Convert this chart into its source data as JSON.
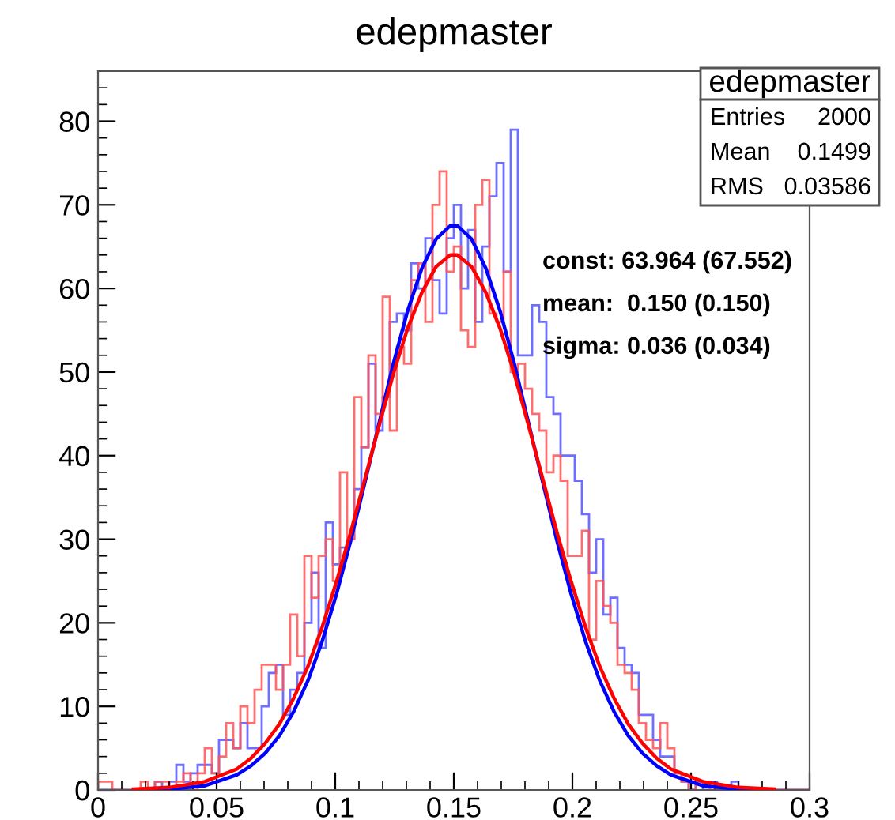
{
  "chart_data": {
    "type": "histogram",
    "title": "edepmaster",
    "bins": [
      0,
      0.003,
      0.006,
      0.009,
      0.012,
      0.015,
      0.018,
      0.021,
      0.024,
      0.027,
      0.03,
      0.033,
      0.036,
      0.039,
      0.042,
      0.045,
      0.048,
      0.051,
      0.054,
      0.057,
      0.06,
      0.063,
      0.066,
      0.069,
      0.072,
      0.075,
      0.078,
      0.081,
      0.084,
      0.087,
      0.09,
      0.093,
      0.096,
      0.099,
      0.102,
      0.105,
      0.108,
      0.111,
      0.114,
      0.117,
      0.12,
      0.123,
      0.126,
      0.129,
      0.132,
      0.135,
      0.138,
      0.141,
      0.144,
      0.147,
      0.15,
      0.153,
      0.156,
      0.159,
      0.162,
      0.165,
      0.168,
      0.171,
      0.174,
      0.177,
      0.18,
      0.183,
      0.186,
      0.189,
      0.192,
      0.195,
      0.198,
      0.201,
      0.204,
      0.207,
      0.21,
      0.213,
      0.216,
      0.219,
      0.222,
      0.225,
      0.228,
      0.231,
      0.234,
      0.237,
      0.24,
      0.243,
      0.246,
      0.249,
      0.252,
      0.255,
      0.258,
      0.261,
      0.264,
      0.267,
      0.27,
      0.273,
      0.276,
      0.279,
      0.282,
      0.285,
      0.288,
      0.291,
      0.294,
      0.297,
      0.3
    ],
    "series": [
      {
        "color": "#5555ff",
        "values": [
          0,
          0,
          0,
          0,
          0,
          0,
          0,
          0,
          1,
          0,
          1,
          3,
          1,
          2,
          3,
          3,
          2,
          6,
          6,
          5,
          8,
          5,
          5,
          10,
          14,
          15,
          9,
          12,
          14,
          20,
          26,
          17,
          32,
          27,
          29,
          30,
          36,
          41,
          51,
          43,
          47,
          56,
          57,
          55,
          63,
          60,
          66,
          61,
          57,
          66,
          70,
          60,
          67,
          56,
          65,
          71,
          75,
          62,
          79,
          52,
          52,
          58,
          56,
          47,
          45,
          40,
          40,
          37,
          33,
          26,
          30,
          21,
          23,
          17,
          15,
          14,
          9,
          9,
          6,
          4,
          4,
          2,
          1,
          0,
          1,
          0,
          1,
          0,
          0,
          1,
          0,
          0,
          0,
          0,
          0,
          0,
          0,
          0,
          0,
          0
        ]
      },
      {
        "color": "#ff5555",
        "values": [
          1,
          1,
          0,
          0,
          0,
          0,
          1,
          0,
          1,
          1,
          0,
          1,
          2,
          0,
          2,
          5,
          2,
          4,
          8,
          5,
          10,
          8,
          12,
          15,
          15,
          12,
          15,
          21,
          16,
          28,
          23,
          28,
          30,
          25,
          38,
          30,
          47,
          41,
          52,
          45,
          59,
          43,
          53,
          51,
          61,
          63,
          56,
          70,
          74,
          62,
          65,
          55,
          53,
          70,
          73,
          57,
          56,
          62,
          50,
          51,
          48,
          45,
          43,
          38,
          40,
          37,
          28,
          28,
          31,
          18,
          25,
          22,
          20,
          15,
          14,
          12,
          8,
          6,
          5,
          8,
          5,
          2,
          1,
          0,
          1,
          1,
          0,
          0,
          0,
          0,
          0,
          0,
          0,
          0,
          0,
          0,
          0,
          0,
          0,
          0
        ]
      },
      {
        "type": "line",
        "color": "#0000ff",
        "x": [
          0.015,
          0.03,
          0.045,
          0.0585,
          0.0645,
          0.0705,
          0.0765,
          0.0825,
          0.0885,
          0.0945,
          0.1005,
          0.1065,
          0.1125,
          0.1185,
          0.1245,
          0.1305,
          0.1365,
          0.1425,
          0.1485,
          0.1515,
          0.1575,
          0.1635,
          0.1695,
          0.1755,
          0.1815,
          0.1875,
          0.1935,
          0.1995,
          0.2055,
          0.2115,
          0.2175,
          0.2235,
          0.2295,
          0.2355,
          0.2415,
          0.255,
          0.27,
          0.285
        ],
        "values": [
          0,
          0.1,
          0.5,
          1.8,
          2.9,
          4.4,
          6.5,
          9.4,
          13.1,
          17.8,
          23.4,
          29.8,
          36.8,
          43.9,
          51.0,
          57.3,
          62.4,
          65.9,
          67.5,
          67.5,
          65.9,
          62.4,
          57.3,
          51.0,
          43.9,
          36.8,
          29.8,
          23.4,
          17.8,
          13.1,
          9.4,
          6.5,
          4.4,
          2.9,
          1.8,
          0.5,
          0.1,
          0
        ]
      },
      {
        "type": "line",
        "color": "#ff0000",
        "x": [
          0.015,
          0.03,
          0.045,
          0.0585,
          0.0645,
          0.0705,
          0.0765,
          0.0825,
          0.0885,
          0.0945,
          0.1005,
          0.1065,
          0.1125,
          0.1185,
          0.1245,
          0.1305,
          0.1365,
          0.1425,
          0.1485,
          0.1515,
          0.1575,
          0.1635,
          0.1695,
          0.1755,
          0.1815,
          0.1875,
          0.1935,
          0.1995,
          0.2055,
          0.2115,
          0.2175,
          0.2235,
          0.2295,
          0.2355,
          0.2415,
          0.255,
          0.27,
          0.285
        ],
        "values": [
          0.1,
          0.3,
          1.0,
          2.5,
          3.8,
          5.6,
          7.9,
          11.0,
          14.8,
          19.5,
          24.9,
          30.8,
          37.2,
          43.6,
          49.8,
          55.2,
          59.5,
          62.6,
          64.0,
          64.0,
          62.6,
          59.5,
          55.2,
          49.8,
          43.6,
          37.2,
          30.8,
          24.9,
          19.5,
          14.8,
          11.0,
          7.9,
          5.6,
          3.8,
          2.5,
          1.0,
          0.3,
          0.1
        ]
      }
    ],
    "xlim": [
      0,
      0.3
    ],
    "xticks": [
      0,
      0.05,
      0.1,
      0.15,
      0.2,
      0.25,
      0.3
    ],
    "ylim": [
      0,
      86
    ],
    "yticks": [
      0,
      10,
      20,
      30,
      40,
      50,
      60,
      70,
      80
    ],
    "line_style": "solid",
    "annotations": [
      "edepmaster",
      "Entries",
      "2000",
      "Mean",
      "0.1499",
      "RMS",
      "0.03586",
      "const: 63.964 (67.552)",
      "mean:  0.150 (0.150)",
      "sigma: 0.036 (0.034)"
    ]
  }
}
